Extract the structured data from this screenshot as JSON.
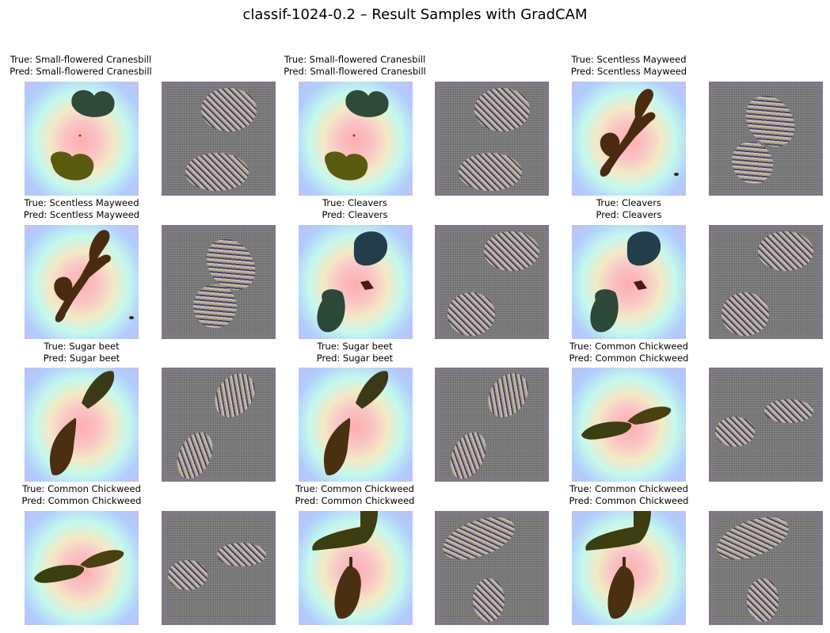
{
  "title": "classif-1024-0.2 – Result Samples with GradCAM",
  "samples": [
    {
      "true_label": "True: Small-flowered Cranesbill",
      "pred_label": "Pred: Small-flowered Cranesbill"
    },
    {
      "true_label": "True: Small-flowered Cranesbill",
      "pred_label": "Pred: Small-flowered Cranesbill"
    },
    {
      "true_label": "True: Scentless Mayweed",
      "pred_label": "Pred: Scentless Mayweed"
    },
    {
      "true_label": "True: Scentless Mayweed",
      "pred_label": "Pred: Scentless Mayweed"
    },
    {
      "true_label": "True: Cleavers",
      "pred_label": "Pred: Cleavers"
    },
    {
      "true_label": "True: Cleavers",
      "pred_label": "Pred: Cleavers"
    },
    {
      "true_label": "True: Sugar beet",
      "pred_label": "Pred: Sugar beet"
    },
    {
      "true_label": "True: Sugar beet",
      "pred_label": "Pred: Sugar beet"
    },
    {
      "true_label": "True: Common Chickweed",
      "pred_label": "Pred: Common Chickweed"
    },
    {
      "true_label": "True: Common Chickweed",
      "pred_label": "Pred: Common Chickweed"
    },
    {
      "true_label": "True: Common Chickweed",
      "pred_label": "Pred: Common Chickweed"
    },
    {
      "true_label": "True: Common Chickweed",
      "pred_label": "Pred: Common Chickweed"
    }
  ]
}
